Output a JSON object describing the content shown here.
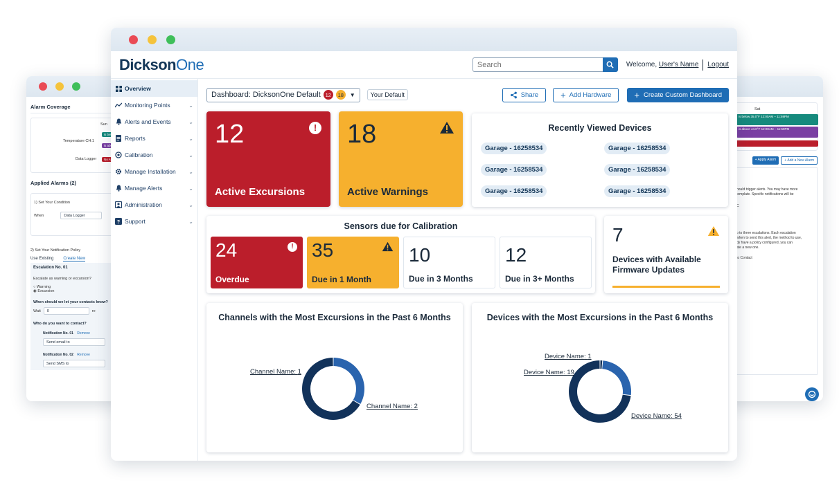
{
  "window_dots": [
    "close",
    "minimize",
    "maximize"
  ],
  "left_window": {
    "heading": "Alarm Coverage",
    "day_label": "Sun",
    "row1": "Temperature CH:1",
    "row2": "Data Logger",
    "pill_teal": "is belo 12:00A",
    "pill_purple": "is abov 12:00A",
    "pill_red": "No Al",
    "applied": "Applied Alarms (2)",
    "step1": "1) Set Your Condition",
    "when_label": "When",
    "when_value": "Data Logger",
    "step2": "2) Set Your Notification Policy",
    "tab_existing": "Use Existing",
    "tab_new": "Create New",
    "escalation": "Escalation No. 01",
    "escalate_q": "Escalate as warning or excursion?",
    "opt_warning": "Warning",
    "opt_excursion": "Excursion",
    "when_q": "When should we let your contacts know?",
    "wait_label": "Wait",
    "wait_value": "0",
    "wait_suffix": "re",
    "who_q": "Who do you want to contact?",
    "notif1": "Notification No. 01",
    "notif2": "Notification No. 02",
    "remove": "Remove",
    "send_email": "Send email to",
    "send_sms": "Send SMS to"
  },
  "right_window": {
    "day_label": "Sat",
    "pill_teal": "is below 35.0°F 12:00AM – 11:59PM",
    "pill_purple": "is above 44.0°F 12:00AM – 11:59PM",
    "apply_btn": "+ Apply Alarm",
    "add_btn": "+ Add a New Alarm",
    "text1": "hould trigger alerts. You may have more",
    "text2": "template. Specific notifications will be",
    "text3": "C",
    "text4": "p to three escalations. Each escalation",
    "text5": "when to send this alert, the method to use,",
    "text6": "dy have a policy configured, you can",
    "text7": "ate a new one.",
    "text8": "to Contact"
  },
  "header": {
    "logo_a": "Dickson",
    "logo_b": "One",
    "search_placeholder": "Search",
    "welcome": "Welcome,",
    "user_name": "User's Name",
    "logout": "Logout"
  },
  "sidebar": [
    {
      "label": "Overview",
      "icon": "grid-icon",
      "active": true
    },
    {
      "label": "Monitoring Points",
      "icon": "trend-icon"
    },
    {
      "label": "Alerts and Events",
      "icon": "bell-icon"
    },
    {
      "label": "Reports",
      "icon": "document-icon"
    },
    {
      "label": "Calibration",
      "icon": "calibration-icon"
    },
    {
      "label": "Manage Installation",
      "icon": "gear-icon"
    },
    {
      "label": "Manage Alerts",
      "icon": "bell-icon"
    },
    {
      "label": "Administration",
      "icon": "admin-icon"
    },
    {
      "label": "Support",
      "icon": "support-icon"
    }
  ],
  "toolbar": {
    "dashboard_label": "Dashboard: DicksonOne Default",
    "badge_red": "12",
    "badge_orange": "18",
    "default_tag": "Your Default",
    "share": "Share",
    "add_hardware": "Add Hardware",
    "create_dashboard": "Create Custom Dashboard"
  },
  "excursions": {
    "count": "12",
    "label": "Active Excursions"
  },
  "warnings": {
    "count": "18",
    "label": "Active Warnings"
  },
  "recent": {
    "title": "Recently Viewed Devices",
    "devices": [
      "Garage - 16258534",
      "Garage - 16258534",
      "Garage - 16258534",
      "Garage - 16258534",
      "Garage - 16258534",
      "Garage - 16258534"
    ]
  },
  "calibration": {
    "title": "Sensors due for Calibration",
    "items": [
      {
        "count": "24",
        "label": "Overdue"
      },
      {
        "count": "35",
        "label": "Due in 1 Month"
      },
      {
        "count": "10",
        "label": "Due in 3 Months"
      },
      {
        "count": "12",
        "label": "Due in 3+ Months"
      }
    ]
  },
  "firmware": {
    "count": "7",
    "label_line1": "Devices with Available",
    "label_line2": "Firmware Updates"
  },
  "colors": {
    "red": "#bb1e2b",
    "orange": "#f6b02e",
    "blue": "#1f6db5",
    "navy": "#12325a",
    "mid_blue": "#2a64ae"
  },
  "chart_data": [
    {
      "type": "pie",
      "title": "Channels with the Most Excursions in the Past 6 Months",
      "labels": [
        "Channel Name",
        "Channel Name"
      ],
      "values": [
        1,
        2
      ]
    },
    {
      "type": "pie",
      "title": "Devices with the Most Excursions in the Past 6 Months",
      "labels": [
        "Device Name",
        "Device Name",
        "Device Name"
      ],
      "values": [
        1,
        19,
        54
      ]
    }
  ]
}
